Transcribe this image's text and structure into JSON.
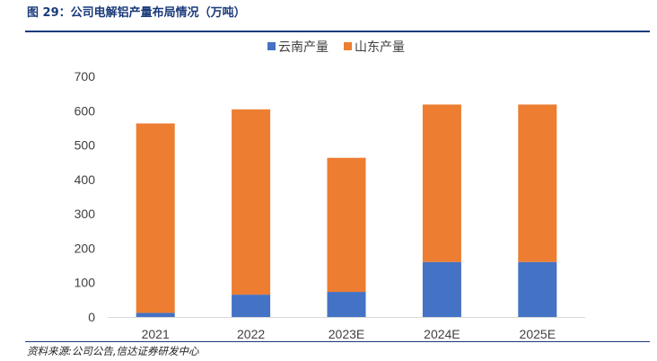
{
  "figure": {
    "title": "图 29：公司电解铝产量布局情况（万吨）",
    "source": "资料来源:公司公告,信达证券研发中心"
  },
  "colors": {
    "yunnan": "#4472C4",
    "shandong": "#ED7D31",
    "axis": "#D9D9D9",
    "text": "#404040"
  },
  "chart_data": {
    "type": "bar",
    "stacked": true,
    "title": "",
    "xlabel": "",
    "ylabel": "",
    "categories": [
      "2021",
      "2022",
      "2023E",
      "2024E",
      "2025E"
    ],
    "series": [
      {
        "name": "云南产量",
        "values": [
          12,
          65,
          73,
          160,
          160
        ]
      },
      {
        "name": "山东产量",
        "values": [
          551,
          539,
          390,
          458,
          458
        ]
      }
    ],
    "ylim": [
      0,
      700
    ],
    "yticks": [
      0,
      100,
      200,
      300,
      400,
      500,
      600,
      700
    ],
    "grid": false,
    "legend": "top-center"
  }
}
